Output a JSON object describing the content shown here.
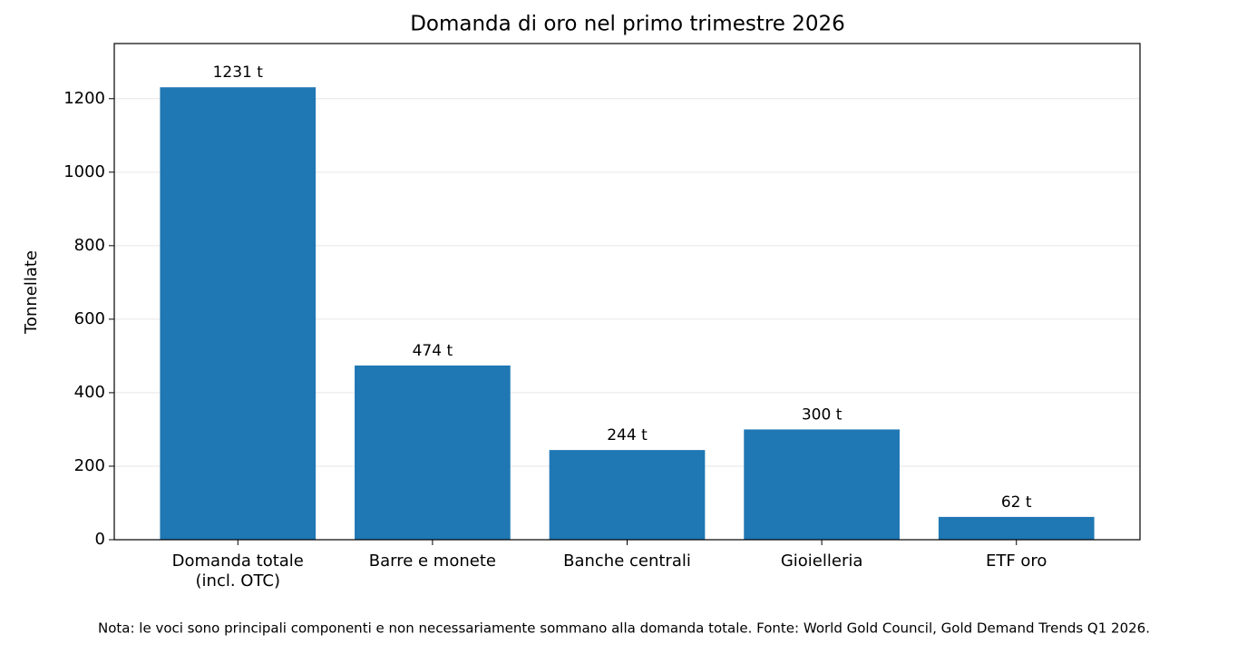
{
  "chart_data": {
    "type": "bar",
    "title": "Domanda di oro nel primo trimestre 2026",
    "y_label": "Tonnellate",
    "categories": [
      "Domanda totale\n(incl. OTC)",
      "Barre e monete",
      "Banche centrali",
      "Gioielleria",
      "ETF oro"
    ],
    "values": [
      1231,
      474,
      244,
      300,
      62
    ],
    "value_labels": [
      "1231 t",
      "474 t",
      "244 t",
      "300 t",
      "62 t"
    ],
    "color": "#1f77b4",
    "ylim": [
      0,
      1350
    ],
    "yticks": [
      0,
      200,
      400,
      600,
      800,
      1000,
      1200
    ],
    "grid": true,
    "note": "Nota: le voci sono principali componenti e non necessariamente sommano alla domanda totale. Fonte: World Gold Council, Gold Demand Trends Q1 2026."
  }
}
